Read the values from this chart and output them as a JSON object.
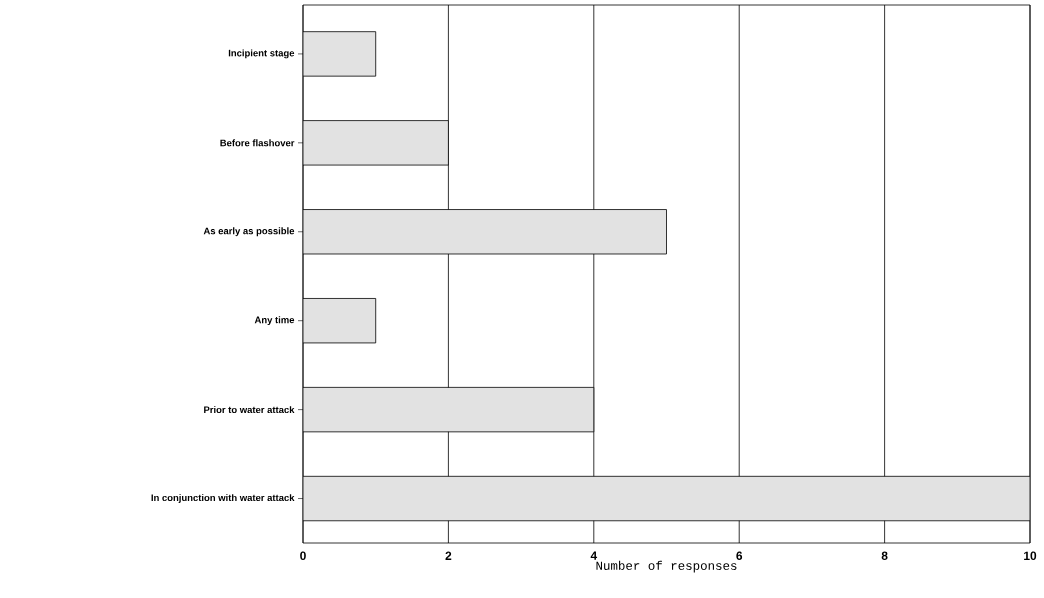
{
  "chart_data": {
    "type": "bar",
    "orientation": "horizontal",
    "xlabel": "Number of responses",
    "categories": [
      "Incipient stage",
      "Before flashover",
      "As early as possible",
      "Any time",
      "Prior to water attack",
      "In conjunction with water attack"
    ],
    "values": [
      1,
      2,
      5,
      1,
      4,
      10
    ],
    "color": "#e2e2e2",
    "xlim": [
      0,
      10
    ],
    "xticks": [
      0,
      2,
      4,
      6,
      8,
      10
    ],
    "grid": "x"
  }
}
